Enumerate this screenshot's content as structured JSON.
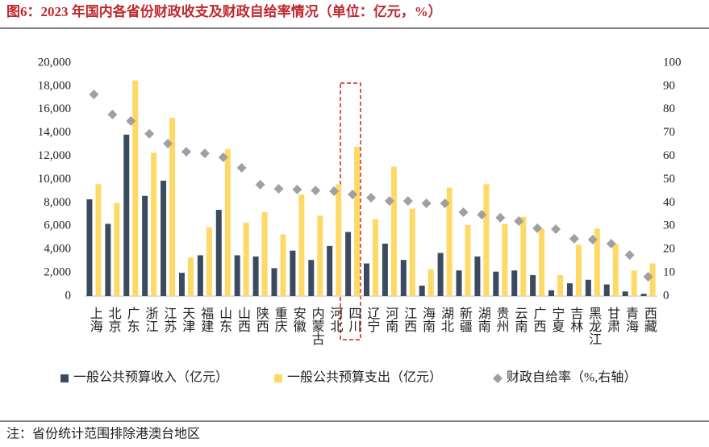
{
  "chart_data": {
    "type": "bar",
    "title": "图6：2023 年国内各省份财政收支及财政自给率情况（单位：亿元，%）",
    "note": "注：省份统计范围排除港澳台地区",
    "categories": [
      "上海",
      "北京",
      "广东",
      "浙江",
      "江苏",
      "天津",
      "福建",
      "山东",
      "山西",
      "陕西",
      "重庆",
      "安徽",
      "内蒙古",
      "河北",
      "四川",
      "辽宁",
      "河南",
      "江西",
      "海南",
      "湖北",
      "新疆",
      "湖南",
      "贵州",
      "云南",
      "广西",
      "宁夏",
      "吉林",
      "黑龙江",
      "甘肃",
      "青海",
      "西藏"
    ],
    "series": [
      {
        "name": "一般公共预算收入（亿元）",
        "color": "#3b4a5e",
        "type": "bar",
        "values": [
          8300,
          6200,
          13850,
          8600,
          9900,
          2000,
          3500,
          7400,
          3500,
          3400,
          2400,
          3900,
          3100,
          4300,
          5500,
          2800,
          4500,
          3100,
          900,
          3700,
          2200,
          3400,
          2100,
          2200,
          1800,
          500,
          1100,
          1400,
          1000,
          400,
          200
        ]
      },
      {
        "name": "一般公共预算支出（亿元）",
        "color": "#ffd966",
        "type": "bar",
        "values": [
          9600,
          8000,
          18500,
          12300,
          15300,
          3300,
          5900,
          12600,
          6300,
          7200,
          5300,
          8700,
          6900,
          9600,
          12800,
          6600,
          11100,
          7500,
          2300,
          9300,
          6100,
          9600,
          6200,
          6800,
          5800,
          1800,
          4400,
          5800,
          4500,
          2200,
          2800
        ]
      },
      {
        "name": "财政自给率（%,右轴）",
        "color": "#a0a0a0",
        "type": "scatter",
        "axis": "y2",
        "values": [
          86.5,
          77.9,
          75.1,
          69.6,
          65.4,
          61.9,
          61.2,
          59.5,
          55.0,
          47.8,
          46.0,
          45.7,
          45.3,
          45.0,
          43.6,
          42.2,
          40.8,
          40.8,
          39.8,
          39.8,
          36.0,
          34.9,
          33.6,
          32.2,
          29.1,
          28.7,
          24.6,
          24.2,
          22.5,
          17.6,
          8.3
        ]
      }
    ],
    "ylim": [
      0,
      20000
    ],
    "yticks": [
      0,
      {
        "value": 2000,
        "label": "2,000"
      },
      {
        "value": 4000,
        "label": "4,000"
      },
      {
        "value": 6000,
        "label": "6,000"
      },
      {
        "value": 8000,
        "label": "8,000"
      },
      {
        "value": 10000,
        "label": "10,000"
      },
      {
        "value": 12000,
        "label": "12,000"
      },
      {
        "value": 14000,
        "label": "14,000"
      },
      {
        "value": 16000,
        "label": "16,000"
      },
      {
        "value": 18000,
        "label": "18,000"
      },
      {
        "value": 20000,
        "label": "20,000"
      }
    ],
    "y2lim": [
      0,
      100
    ],
    "y2ticks": [
      0,
      10,
      20,
      30,
      40,
      50,
      60,
      70,
      80,
      90,
      100
    ],
    "grid": false,
    "legend": "bottom"
  }
}
